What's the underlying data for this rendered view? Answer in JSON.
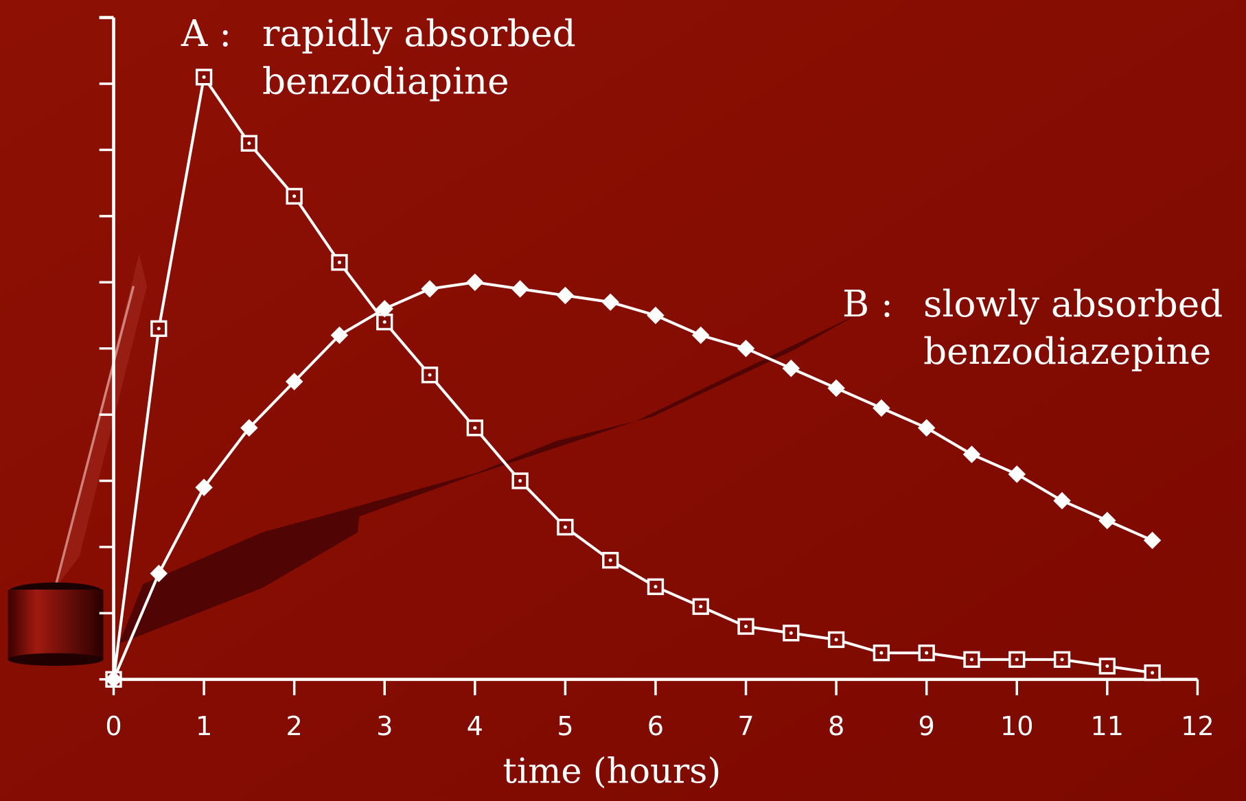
{
  "chart_data": {
    "type": "line",
    "x_label": "time (hours)",
    "xlim": [
      0,
      12
    ],
    "xticks": [
      0,
      1,
      2,
      3,
      4,
      5,
      6,
      7,
      8,
      9,
      10,
      11,
      12
    ],
    "ylim": [
      0,
      10
    ],
    "yticks": [
      0,
      1,
      2,
      3,
      4,
      5,
      6,
      7,
      8,
      9,
      10
    ],
    "x": [
      0,
      0.5,
      1,
      1.5,
      2,
      2.5,
      3,
      3.5,
      4,
      4.5,
      5,
      5.5,
      6,
      6.5,
      7,
      7.5,
      8,
      8.5,
      9,
      9.5,
      10,
      10.5,
      11,
      11.5
    ],
    "series": [
      {
        "color": "#ffffff",
        "marker": "square",
        "values": [
          0,
          5.3,
          9.1,
          8.1,
          7.3,
          6.3,
          5.4,
          4.6,
          3.8,
          3.0,
          2.3,
          1.8,
          1.4,
          1.1,
          0.8,
          0.7,
          0.6,
          0.4,
          0.4,
          0.3,
          0.3,
          0.3,
          0.2,
          0.1
        ]
      },
      {
        "color": "#ffffff",
        "marker": "diamond",
        "values": [
          0,
          1.6,
          2.9,
          3.8,
          4.5,
          5.2,
          5.6,
          5.9,
          6.0,
          5.9,
          5.8,
          5.7,
          5.5,
          5.2,
          5.0,
          4.7,
          4.4,
          4.1,
          3.8,
          3.4,
          3.1,
          2.7,
          2.4,
          2.1
        ]
      }
    ],
    "annotations": [
      {
        "label": "A :",
        "text": [
          "rapidly absorbed",
          "benzodiapine"
        ]
      },
      {
        "label": "B :",
        "text": [
          "slowly absorbed",
          "benzodiazepine"
        ]
      }
    ]
  }
}
